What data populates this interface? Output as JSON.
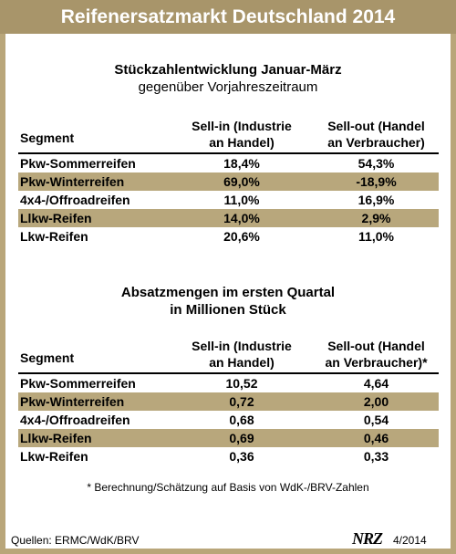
{
  "title": "Reifenersatzmarkt Deutschland 2014",
  "section1": {
    "title_line1": "Stückzahlentwicklung Januar-März",
    "title_line2": "gegenüber Vorjahreszeitraum",
    "header": {
      "segment": "Segment",
      "sellin_line1": "Sell-in (Industrie",
      "sellin_line2": "an Handel)",
      "sellout_line1": "Sell-out (Handel",
      "sellout_line2": "an Verbraucher)"
    },
    "rows": [
      {
        "segment": "Pkw-Sommerreifen",
        "sellin": "18,4%",
        "sellout": "54,3%"
      },
      {
        "segment": "Pkw-Winterreifen",
        "sellin": "69,0%",
        "sellout": "-18,9%"
      },
      {
        "segment": "4x4-/Offroadreifen",
        "sellin": "11,0%",
        "sellout": "16,9%"
      },
      {
        "segment": "Llkw-Reifen",
        "sellin": "14,0%",
        "sellout": "2,9%"
      },
      {
        "segment": "Lkw-Reifen",
        "sellin": "20,6%",
        "sellout": "11,0%"
      }
    ]
  },
  "section2": {
    "title_line1": "Absatzmengen im ersten Quartal",
    "title_line2": "in Millionen Stück",
    "header": {
      "segment": "Segment",
      "sellin_line1": "Sell-in (Industrie",
      "sellin_line2": "an Handel)",
      "sellout_line1": "Sell-out (Handel",
      "sellout_line2": "an Verbraucher)*"
    },
    "rows": [
      {
        "segment": "Pkw-Sommerreifen",
        "sellin": "10,52",
        "sellout": "4,64"
      },
      {
        "segment": "Pkw-Winterreifen",
        "sellin": "0,72",
        "sellout": "2,00"
      },
      {
        "segment": "4x4-/Offroadreifen",
        "sellin": "0,68",
        "sellout": "0,54"
      },
      {
        "segment": "Llkw-Reifen",
        "sellin": "0,69",
        "sellout": "0,46"
      },
      {
        "segment": "Lkw-Reifen",
        "sellin": "0,36",
        "sellout": "0,33"
      }
    ]
  },
  "footnote": "* Berechnung/Schätzung auf Basis von WdK-/BRV-Zahlen",
  "source": "Quellen: ERMC/WdK/BRV",
  "logo": "NRZ",
  "date": "4/2014",
  "colors": {
    "title_bar": "#a8956a",
    "shade": "#b8a77c",
    "frame": "#b9a67a"
  }
}
